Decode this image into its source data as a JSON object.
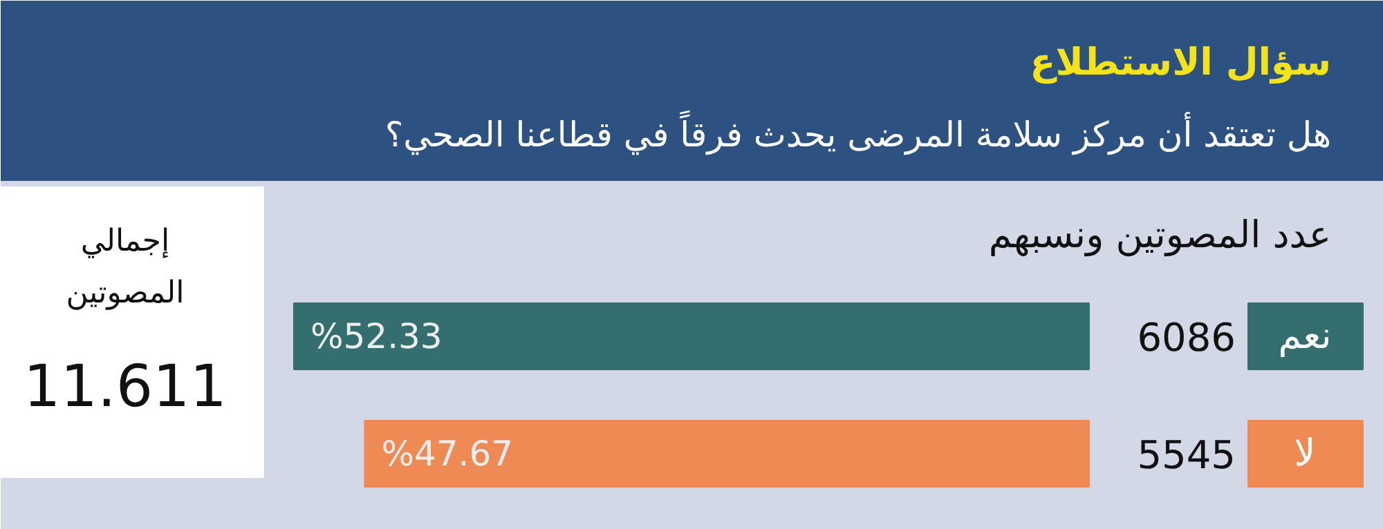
{
  "chart_data": {
    "type": "bar",
    "orientation": "horizontal",
    "title": "سؤال الاستطلاع",
    "subtitle": "هل تعتقد أن مركز سلامة المرضى يحدث فرقاً في قطاعنا الصحي؟",
    "categories": [
      "نعم",
      "لا"
    ],
    "values": [
      52.33,
      47.67
    ],
    "colors": [
      "#346e6e",
      "#f08a55"
    ],
    "value_labels": [
      "%52.33",
      "%47.67"
    ],
    "annotations": [
      "عدد المصوتين ونسبهم",
      "إجمالي\nالمصوتين",
      "11.611",
      "6086",
      "5545"
    ]
  }
}
